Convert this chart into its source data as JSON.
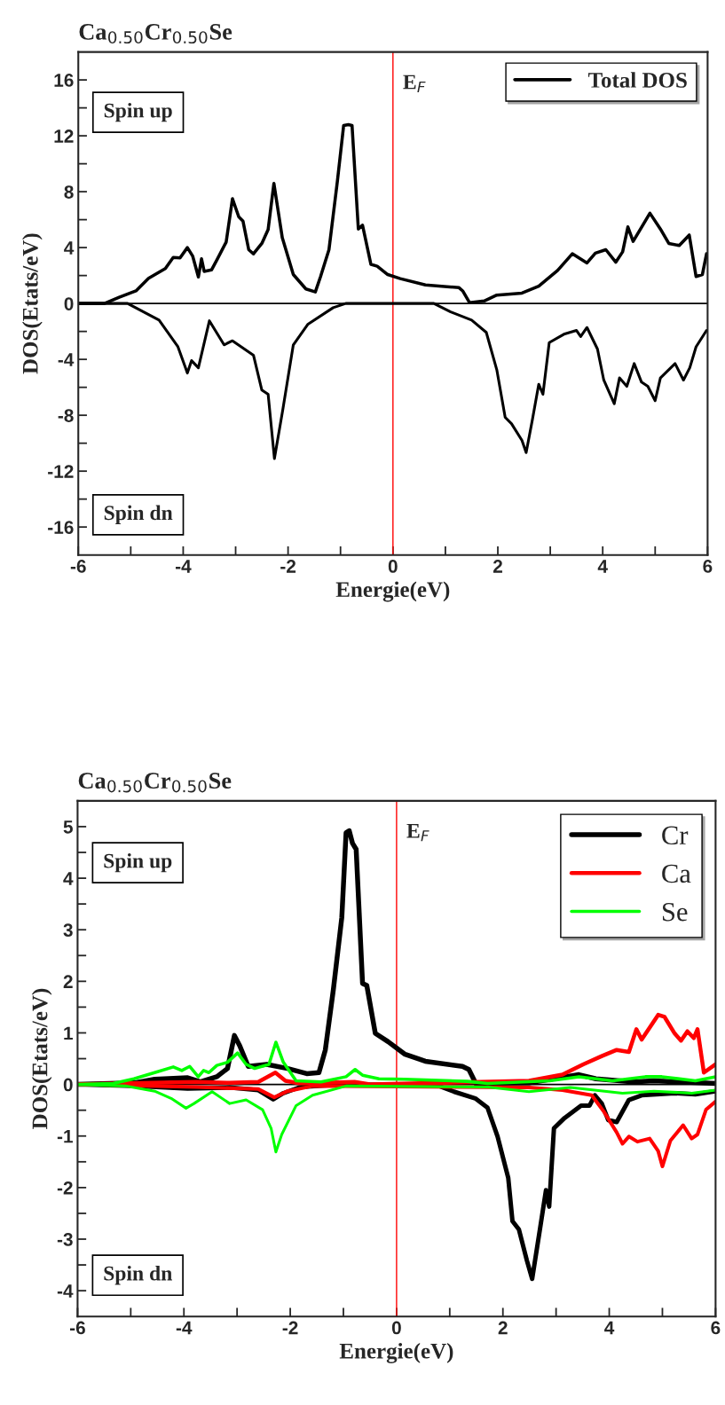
{
  "chart_data": [
    {
      "type": "line",
      "title": "Ca$_{0.50}$Cr$_{0.50}$Se",
      "xlabel": "Energie(eV)",
      "ylabel": "DOS(Etats/eV)",
      "xlim": [
        -6,
        6
      ],
      "ylim": [
        -18,
        18
      ],
      "xticks": [
        -6,
        {
          "value": -5,
          "label": null
        },
        -4,
        {
          "value": -3,
          "label": null
        },
        -2,
        {
          "value": -1,
          "label": null
        },
        0,
        {
          "value": 1,
          "label": null
        },
        2,
        {
          "value": 3,
          "label": null
        },
        4,
        {
          "value": 5,
          "label": null
        },
        6
      ],
      "yticks": [
        -16,
        {
          "value": -14,
          "label": null
        },
        -12,
        {
          "value": -10,
          "label": null
        },
        -8,
        {
          "value": -6,
          "label": null
        },
        -4,
        {
          "value": -2,
          "label": null
        },
        0,
        {
          "value": 2,
          "label": null
        },
        4,
        {
          "value": 6,
          "label": null
        },
        8,
        {
          "value": 10,
          "label": null
        },
        12,
        {
          "value": 14,
          "label": null
        },
        16
      ],
      "legend": "top right",
      "grid": false,
      "annotations": [
        "Spin up",
        "Spin dn"
      ],
      "ref_lines": [
        {
          "axis": "x",
          "value": 0,
          "label": "E$_{F}$",
          "color": "#ff0000"
        },
        {
          "axis": "y",
          "value": 0,
          "color": "#000000"
        }
      ],
      "series": [
        {
          "name": "Total DOS",
          "color": "#000000",
          "x": [
            -6,
            -5.5,
            -5.22,
            -4.9,
            -4.66,
            -4.34,
            -4.19,
            -4.06,
            -3.92,
            -3.82,
            -3.71,
            -3.65,
            -3.6,
            -3.46,
            -3.36,
            -3.18,
            -3.06,
            -2.94,
            -2.86,
            -2.75,
            -2.66,
            -2.5,
            -2.38,
            -2.27,
            -2.11,
            -1.9,
            -1.66,
            -1.48,
            -1.38,
            -1.22,
            -1.06,
            -0.94,
            -0.85,
            -0.78,
            -0.66,
            -0.58,
            -0.42,
            -0.3,
            -0.1,
            0.14,
            0.62,
            1.26,
            1.33,
            1.46,
            1.74,
            1.98,
            2.46,
            2.78,
            3.14,
            3.42,
            3.7,
            3.86,
            4.06,
            4.25,
            4.38,
            4.48,
            4.58,
            4.9,
            5.1,
            5.26,
            5.46,
            5.65,
            5.78,
            5.9,
            5.98
          ],
          "values": [
            0,
            0,
            0.44,
            0.9,
            1.8,
            2.5,
            3.3,
            3.26,
            4.0,
            3.4,
            1.9,
            3.2,
            2.3,
            2.4,
            3.1,
            4.4,
            7.5,
            6.2,
            5.9,
            3.85,
            3.55,
            4.3,
            5.3,
            8.6,
            4.7,
            2.07,
            1.04,
            0.83,
            1.93,
            3.85,
            8.74,
            12.74,
            12.8,
            12.74,
            5.33,
            5.6,
            2.8,
            2.67,
            2.07,
            1.78,
            1.33,
            1.13,
            0.9,
            0.06,
            0.18,
            0.6,
            0.74,
            1.24,
            2.37,
            3.56,
            2.9,
            3.6,
            3.85,
            2.96,
            3.7,
            5.48,
            4.44,
            6.46,
            5.33,
            4.3,
            4.15,
            4.9,
            1.93,
            2.07,
            3.56
          ]
        },
        {
          "color": "#000000",
          "x": [
            -6,
            -5.06,
            -4.46,
            -4.1,
            -3.92,
            -3.84,
            -3.71,
            -3.5,
            -3.22,
            -3.06,
            -2.66,
            -2.5,
            -2.38,
            -2.26,
            -2.1,
            -1.9,
            -1.62,
            -1.14,
            -0.9,
            0.78,
            1.1,
            1.5,
            1.78,
            1.98,
            2.14,
            2.26,
            2.46,
            2.54,
            2.66,
            2.78,
            2.86,
            2.98,
            3.26,
            3.5,
            3.58,
            3.7,
            3.9,
            4.02,
            4.22,
            4.32,
            4.46,
            4.6,
            4.74,
            4.86,
            5.0,
            5.1,
            5.38,
            5.54,
            5.66,
            5.78,
            5.98
          ],
          "values": [
            0,
            0,
            -1.19,
            -3.1,
            -4.98,
            -4.09,
            -4.6,
            -1.24,
            -2.96,
            -2.67,
            -3.7,
            -6.2,
            -6.5,
            -11.1,
            -7.6,
            -2.96,
            -1.48,
            -0.3,
            0,
            0,
            -0.6,
            -1.19,
            -2.07,
            -4.74,
            -8.15,
            -8.6,
            -9.8,
            -10.67,
            -8.3,
            -5.78,
            -6.5,
            -2.8,
            -2.2,
            -1.93,
            -2.37,
            -1.72,
            -3.26,
            -5.48,
            -7.17,
            -5.33,
            -5.93,
            -4.3,
            -5.63,
            -5.93,
            -6.96,
            -5.33,
            -4.3,
            -5.48,
            -4.6,
            -3.1,
            -1.93
          ]
        }
      ]
    },
    {
      "type": "line",
      "title": "Ca$_{0.50}$Cr$_{0.50}$Se",
      "xlabel": "Energie(eV)",
      "ylabel": "DOS(Etats/eV)",
      "xlim": [
        -6,
        6
      ],
      "ylim": [
        -4.5,
        5.5
      ],
      "xticks": [
        -6,
        {
          "value": -5,
          "label": null
        },
        -4,
        {
          "value": -3,
          "label": null
        },
        -2,
        {
          "value": -1,
          "label": null
        },
        0,
        {
          "value": 1,
          "label": null
        },
        2,
        {
          "value": 3,
          "label": null
        },
        4,
        {
          "value": 5,
          "label": null
        },
        6
      ],
      "yticks": [
        -4,
        {
          "value": -3.5,
          "label": null
        },
        -3,
        {
          "value": -2.5,
          "label": null
        },
        -2,
        {
          "value": -1.5,
          "label": null
        },
        -1,
        {
          "value": -0.5,
          "label": null
        },
        0,
        {
          "value": 0.5,
          "label": null
        },
        1,
        {
          "value": 1.5,
          "label": null
        },
        2,
        {
          "value": 2.5,
          "label": null
        },
        3,
        {
          "value": 3.5,
          "label": null
        },
        4,
        {
          "value": 4.5,
          "label": null
        },
        5
      ],
      "legend": "top right",
      "grid": false,
      "annotations": [
        "Spin up",
        "Spin dn"
      ],
      "ref_lines": [
        {
          "axis": "x",
          "value": 0,
          "label": "E$_{F}$",
          "color": "#ff0000"
        },
        {
          "axis": "y",
          "value": 0,
          "color": "#000000"
        }
      ],
      "series": [
        {
          "name": "Cr",
          "color": "#000000",
          "x": [
            -6,
            -4.94,
            -4.55,
            -3.93,
            -3.69,
            -3.38,
            -3.18,
            -3.05,
            -2.95,
            -2.79,
            -2.44,
            -2.05,
            -1.69,
            -1.46,
            -1.34,
            -1.19,
            -1.03,
            -0.95,
            -0.89,
            -0.83,
            -0.76,
            -0.64,
            -0.56,
            -0.4,
            -0.16,
            0.15,
            0.54,
            1.24,
            1.36,
            1.49,
            2.49,
            3.43,
            3.75,
            4.45,
            4.84,
            6
          ],
          "values": [
            0,
            0.03,
            0.1,
            0.13,
            0.05,
            0.15,
            0.31,
            0.95,
            0.75,
            0.35,
            0.39,
            0.31,
            0.21,
            0.23,
            0.67,
            1.83,
            3.24,
            4.88,
            4.92,
            4.68,
            4.56,
            1.96,
            1.92,
            0.99,
            0.83,
            0.59,
            0.45,
            0.35,
            0.29,
            0.02,
            0.03,
            0.19,
            0.11,
            0.05,
            0.07,
            0.02
          ]
        },
        {
          "color": "#000000",
          "x": [
            -6,
            -4.94,
            -3.93,
            -3.14,
            -2.6,
            -2.32,
            -2.13,
            -1.81,
            -1.03,
            0.77,
            1.08,
            1.48,
            1.71,
            1.9,
            2.1,
            2.18,
            2.3,
            2.45,
            2.55,
            2.69,
            2.81,
            2.87,
            2.96,
            3.16,
            3.47,
            3.63,
            3.73,
            3.86,
            3.98,
            4.14,
            4.37,
            4.61,
            5.23,
            5.62,
            6
          ],
          "values": [
            0,
            -0.03,
            -0.08,
            -0.06,
            -0.11,
            -0.29,
            -0.17,
            -0.05,
            0,
            -0.02,
            -0.14,
            -0.27,
            -0.45,
            -1.01,
            -1.81,
            -2.65,
            -2.81,
            -3.41,
            -3.77,
            -2.85,
            -2.05,
            -2.37,
            -0.85,
            -0.65,
            -0.41,
            -0.41,
            -0.21,
            -0.37,
            -0.69,
            -0.73,
            -0.3,
            -0.21,
            -0.17,
            -0.19,
            -0.13
          ]
        },
        {
          "name": "Ca",
          "color": "#ff0000",
          "x": [
            -6,
            -3.77,
            -3.14,
            -2.6,
            -2.28,
            -2.09,
            -1.81,
            -0.79,
            -0.48,
            2.49,
            3.12,
            3.51,
            3.86,
            4.14,
            4.37,
            4.51,
            4.61,
            4.92,
            5.04,
            5.23,
            5.35,
            5.47,
            5.59,
            5.66,
            5.78,
            6
          ],
          "values": [
            0,
            0.05,
            0.03,
            0.05,
            0.23,
            0.07,
            0.02,
            0.05,
            0,
            0.07,
            0.19,
            0.39,
            0.55,
            0.67,
            0.63,
            1.07,
            0.87,
            1.35,
            1.31,
            0.99,
            0.85,
            1.03,
            0.9,
            1.07,
            0.23,
            0.39
          ]
        },
        {
          "color": "#ff0000",
          "x": [
            -6,
            -3.77,
            -2.6,
            -2.3,
            -2.05,
            -1.58,
            2.49,
            3.12,
            3.67,
            3.9,
            4.14,
            4.25,
            4.37,
            4.53,
            4.76,
            4.92,
            5.0,
            5.15,
            5.39,
            5.55,
            5.66,
            5.82,
            6
          ],
          "values": [
            0,
            -0.05,
            -0.09,
            -0.25,
            -0.13,
            -0.03,
            -0.06,
            -0.11,
            -0.21,
            -0.53,
            -0.93,
            -1.15,
            -1.01,
            -1.11,
            -1.05,
            -1.29,
            -1.59,
            -1.09,
            -0.79,
            -1.05,
            -0.97,
            -0.49,
            -0.33
          ]
        },
        {
          "name": "Se",
          "color": "#00ff00",
          "x": [
            -6,
            -5.33,
            -4.94,
            -4.55,
            -4.2,
            -4.04,
            -3.89,
            -3.73,
            -3.63,
            -3.53,
            -3.38,
            -3.18,
            -2.99,
            -2.83,
            -2.67,
            -2.4,
            -2.27,
            -2.13,
            -1.89,
            -1.42,
            -0.95,
            -0.78,
            -0.64,
            -0.33,
            0.15,
            1.32,
            1.71,
            2.88,
            3.43,
            4.06,
            4.68,
            4.99,
            5.62,
            6
          ],
          "values": [
            0,
            0.02,
            0.11,
            0.23,
            0.34,
            0.27,
            0.35,
            0.15,
            0.27,
            0.23,
            0.37,
            0.43,
            0.61,
            0.39,
            0.31,
            0.39,
            0.82,
            0.43,
            0.07,
            0.05,
            0.15,
            0.29,
            0.18,
            0.11,
            0.1,
            0.06,
            0.02,
            0.07,
            0.15,
            0.07,
            0.15,
            0.15,
            0.07,
            0.15
          ]
        },
        {
          "color": "#00ff00",
          "x": [
            -6,
            -5.1,
            -4.55,
            -4.24,
            -3.96,
            -3.81,
            -3.47,
            -3.14,
            -2.83,
            -2.52,
            -2.36,
            -2.27,
            -2.16,
            -1.89,
            -1.58,
            -0.95,
            1.71,
            2.49,
            3.27,
            4.25,
            4.84,
            5.55,
            6
          ],
          "values": [
            0,
            -0.03,
            -0.13,
            -0.27,
            -0.46,
            -0.37,
            -0.14,
            -0.37,
            -0.3,
            -0.49,
            -0.85,
            -1.31,
            -0.97,
            -0.41,
            -0.21,
            -0.03,
            -0.05,
            -0.14,
            -0.06,
            -0.17,
            -0.13,
            -0.17,
            -0.11
          ]
        }
      ]
    }
  ]
}
